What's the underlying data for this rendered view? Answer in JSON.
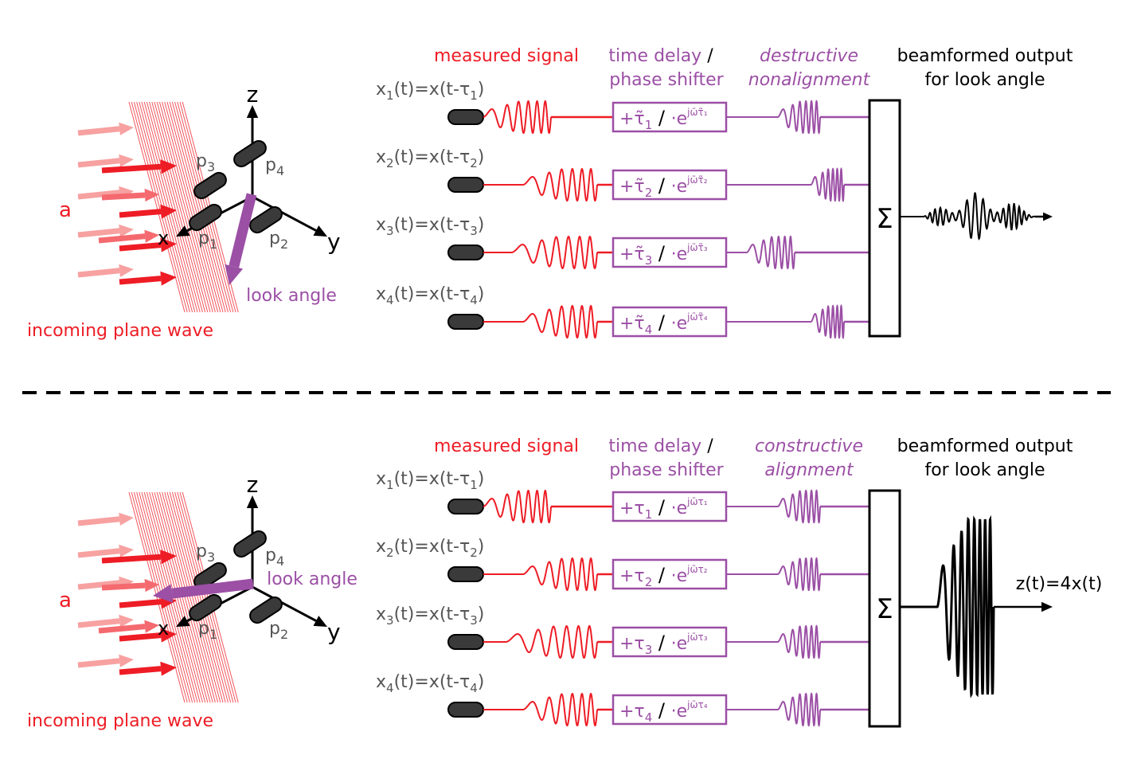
{
  "colors": {
    "red": "#ee1c25",
    "lightred": "#f7a1a1",
    "purple": "#9b4fa5",
    "gray": "#555555",
    "darkgray": "#3a3a3a",
    "black": "#000000"
  },
  "panels": [
    {
      "id": "top",
      "headers": {
        "measured": "measured signal",
        "delay_line1": "time delay",
        "delay_slash": "/",
        "delay_line2": "phase shifter",
        "align_line1": "destructive",
        "align_line2": "nonalignment",
        "output_line1": "beamformed output",
        "output_line2": "for look angle"
      },
      "wave_label": "incoming plane wave",
      "source_label": "a",
      "look_label": "look angle",
      "axes": {
        "z": "z",
        "x": "x",
        "y": "y"
      },
      "sensors": [
        {
          "label": "p",
          "sub": "1"
        },
        {
          "label": "p",
          "sub": "2"
        },
        {
          "label": "p",
          "sub": "3"
        },
        {
          "label": "p",
          "sub": "4"
        }
      ],
      "channels": [
        {
          "pre": "x",
          "sub": "1",
          "mid": "(t)=x(t-τ",
          "sub2": "1",
          "post": ")",
          "box_lead": "+τ̃",
          "box_sub": "1",
          "box_sep": "/",
          "box_exp": "·e",
          "box_sup": "jω̄τ̃₁"
        },
        {
          "pre": "x",
          "sub": "2",
          "mid": "(t)=x(t-τ",
          "sub2": "2",
          "post": ")",
          "box_lead": "+τ̃",
          "box_sub": "2",
          "box_sep": "/",
          "box_exp": "·e",
          "box_sup": "jω̄τ̃₂"
        },
        {
          "pre": "x",
          "sub": "3",
          "mid": "(t)=x(t-τ",
          "sub2": "3",
          "post": ")",
          "box_lead": "+τ̃",
          "box_sub": "3",
          "box_sep": "/",
          "box_exp": "·e",
          "box_sup": "jω̄τ̃₃"
        },
        {
          "pre": "x",
          "sub": "4",
          "mid": "(t)=x(t-τ",
          "sub2": "4",
          "post": ")",
          "box_lead": "+τ̃",
          "box_sub": "4",
          "box_sep": "/",
          "box_exp": "·e",
          "box_sup": "jω̄τ̃₄"
        }
      ],
      "sum_symbol": "Σ",
      "output_label": ""
    },
    {
      "id": "bottom",
      "headers": {
        "measured": "measured signal",
        "delay_line1": "time delay",
        "delay_slash": "/",
        "delay_line2": "phase shifter",
        "align_line1": "constructive",
        "align_line2": "alignment",
        "output_line1": "beamformed output",
        "output_line2": "for look angle"
      },
      "wave_label": "incoming plane wave",
      "source_label": "a",
      "look_label": "look angle",
      "axes": {
        "z": "z",
        "x": "x",
        "y": "y"
      },
      "sensors": [
        {
          "label": "p",
          "sub": "1"
        },
        {
          "label": "p",
          "sub": "2"
        },
        {
          "label": "p",
          "sub": "3"
        },
        {
          "label": "p",
          "sub": "4"
        }
      ],
      "channels": [
        {
          "pre": "x",
          "sub": "1",
          "mid": "(t)=x(t-τ",
          "sub2": "1",
          "post": ")",
          "box_lead": "+τ",
          "box_sub": "1",
          "box_sep": "/",
          "box_exp": "·e",
          "box_sup": "jω̄τ₁"
        },
        {
          "pre": "x",
          "sub": "2",
          "mid": "(t)=x(t-τ",
          "sub2": "2",
          "post": ")",
          "box_lead": "+τ",
          "box_sub": "2",
          "box_sep": "/",
          "box_exp": "·e",
          "box_sup": "jω̄τ₂"
        },
        {
          "pre": "x",
          "sub": "3",
          "mid": "(t)=x(t-τ",
          "sub2": "3",
          "post": ")",
          "box_lead": "+τ",
          "box_sub": "3",
          "box_sep": "/",
          "box_exp": "·e",
          "box_sup": "jω̄τ₃"
        },
        {
          "pre": "x",
          "sub": "4",
          "mid": "(t)=x(t-τ",
          "sub2": "4",
          "post": ")",
          "box_lead": "+τ",
          "box_sub": "4",
          "box_sep": "/",
          "box_exp": "·e",
          "box_sup": "jω̄τ₄"
        }
      ],
      "sum_symbol": "Σ",
      "output_label": "z(t)=4x(t)"
    }
  ]
}
